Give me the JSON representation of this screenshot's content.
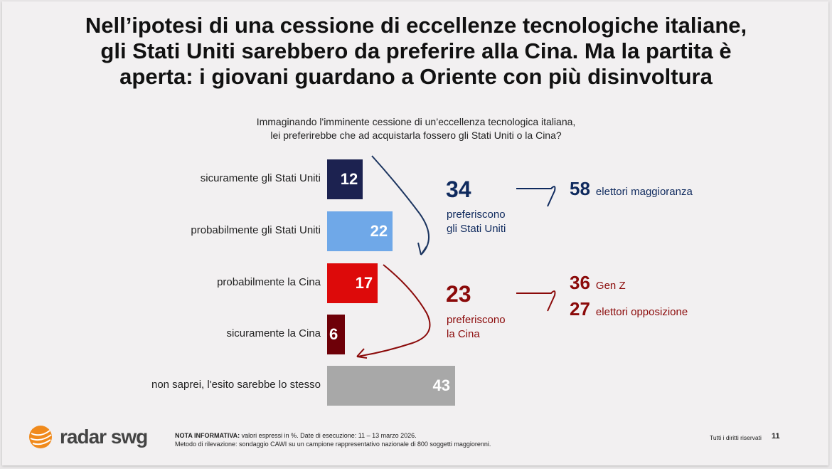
{
  "title": [
    "Nell’ipotesi di una cessione di eccellenze tecnologiche italiane,",
    "gli Stati Uniti sarebbero da preferire alla Cina. Ma la partita è",
    "aperta: i giovani guardano a Oriente con più disinvoltura"
  ],
  "question": [
    "Immaginando l'imminente cessione di un’eccellenza tecnologica italiana,",
    "lei preferirebbe che ad acquistarla fossero gli Stati Uniti o la Cina?"
  ],
  "chart_data": {
    "type": "bar",
    "orientation": "horizontal",
    "unit": "%",
    "categories": [
      "sicuramente gli Stati Uniti",
      "probabilmente gli Stati Uniti",
      "probabilmente la Cina",
      "sicuramente la Cina",
      "non saprei, l'esito sarebbe lo stesso"
    ],
    "values": [
      12,
      22,
      17,
      6,
      43
    ],
    "colors": [
      "#1c2250",
      "#6fa8e8",
      "#dd0a0a",
      "#6e0008",
      "#a8a8a8"
    ]
  },
  "groups": {
    "usa": {
      "value": "34",
      "label": [
        "preferiscono",
        "gli Stati Uniti"
      ],
      "color": "#0f2a5e",
      "details": [
        {
          "value": "58",
          "label": "elettori maggioranza"
        }
      ]
    },
    "china": {
      "value": "23",
      "label": [
        "preferiscono",
        "la Cina"
      ],
      "color": "#8b0a0a",
      "details": [
        {
          "value": "36",
          "label": "Gen Z"
        },
        {
          "value": "27",
          "label": "elettori opposizione"
        }
      ]
    }
  },
  "footer": {
    "logo": "radar swg",
    "note_bold": "NOTA INFORMATIVA:",
    "note_line1": " valori espressi in %. Date di esecuzione: 11 – 13 marzo 2026.",
    "note_line2": "Metodo di rilevazione: sondaggio CAWI su un campione rappresentativo nazionale di 800 soggetti maggiorenni.",
    "rights": "Tutti i diritti riservati",
    "page": "11"
  }
}
